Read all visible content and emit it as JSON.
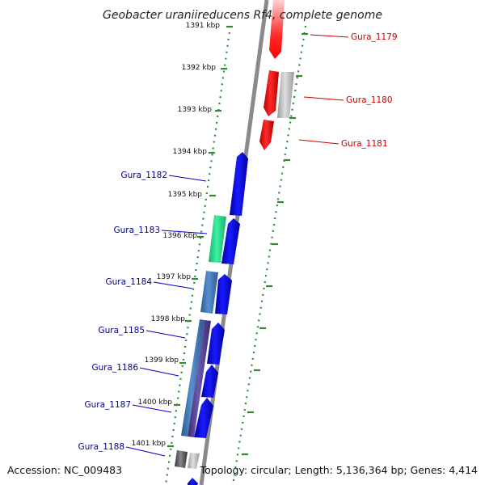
{
  "header": {
    "title": "Geobacter uraniireducens Rf4, complete genome"
  },
  "footer": {
    "accession": "Accession: NC_009483",
    "summary": "Topology: circular; Length: 5,136,364 bp; Genes: 4,414"
  },
  "scale": {
    "ticks": [
      "1391 kbp",
      "1392 kbp",
      "1393 kbp",
      "1394 kbp",
      "1395 kbp",
      "1396 kbp",
      "1397 kbp",
      "1398 kbp",
      "1399 kbp",
      "1400 kbp",
      "1401 kbp"
    ]
  },
  "colors": {
    "backbone": "#8a8a8a",
    "ruler": "#2e8b2e",
    "forward_label": "#00008b",
    "reverse_label": "#cc0000",
    "gene_red": "#ff0000",
    "gene_blue": "#0000ee",
    "gene_green": "#22dd88",
    "gene_steel": "#3a70b0",
    "gene_gray": "#aaaaaa",
    "gene_purple": "#4a3a8a",
    "gene_darkgray": "#555555"
  },
  "genes": [
    {
      "label": "Gura_1179",
      "strand": "reverse"
    },
    {
      "label": "Gura_1180",
      "strand": "reverse"
    },
    {
      "label": "Gura_1181",
      "strand": "reverse"
    },
    {
      "label": "Gura_1182",
      "strand": "forward"
    },
    {
      "label": "Gura_1183",
      "strand": "forward"
    },
    {
      "label": "Gura_1184",
      "strand": "forward"
    },
    {
      "label": "Gura_1185",
      "strand": "forward"
    },
    {
      "label": "Gura_1186",
      "strand": "forward"
    },
    {
      "label": "Gura_1187",
      "strand": "forward"
    },
    {
      "label": "Gura_1188",
      "strand": "forward"
    }
  ]
}
